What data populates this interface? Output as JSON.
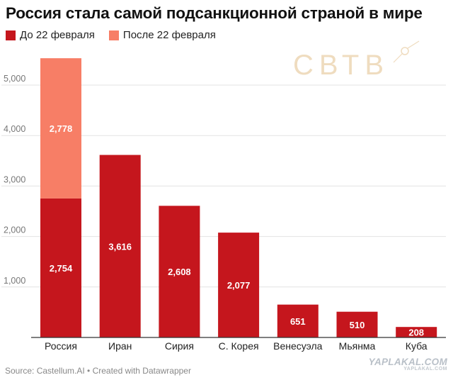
{
  "title": "Россия стала самой подсанкционной страной в мире",
  "legend": {
    "before": "До 22 февраля",
    "after": "После 22 февраля"
  },
  "colors": {
    "before": "#c5161d",
    "after": "#f77e66",
    "grid": "#e3e3e3",
    "axis": "#333333",
    "tick_text": "#777777"
  },
  "logo": {
    "text": "СВТВ"
  },
  "watermark": {
    "main": "YAPLAKAL.COM",
    "sub": "YAPLAKAL.COM"
  },
  "footer": "Source: Castellum.AI • Created with Datawrapper",
  "chart_data": {
    "type": "bar",
    "stacked": true,
    "categories": [
      "Россия",
      "Иран",
      "Сирия",
      "С. Корея",
      "Венесуэла",
      "Мьянма",
      "Куба"
    ],
    "series": [
      {
        "name": "До 22 февраля",
        "values": [
          2754,
          3616,
          2608,
          2077,
          651,
          510,
          208
        ]
      },
      {
        "name": "После 22 февраля",
        "values": [
          2778,
          0,
          0,
          0,
          0,
          0,
          0
        ]
      }
    ],
    "value_labels": {
      "До 22 февраля": [
        "2,754",
        "3,616",
        "2,608",
        "2,077",
        "651",
        "510",
        "208"
      ],
      "После 22 февраля": [
        "2,778",
        "",
        "",
        "",
        "",
        "",
        ""
      ]
    },
    "yticks": [
      1000,
      2000,
      3000,
      4000,
      5000
    ],
    "ytick_labels": [
      "1,000",
      "2,000",
      "3,000",
      "4,000",
      "5,000"
    ],
    "ylim": [
      0,
      5800
    ],
    "grid": true,
    "legend_position": "top-left"
  }
}
